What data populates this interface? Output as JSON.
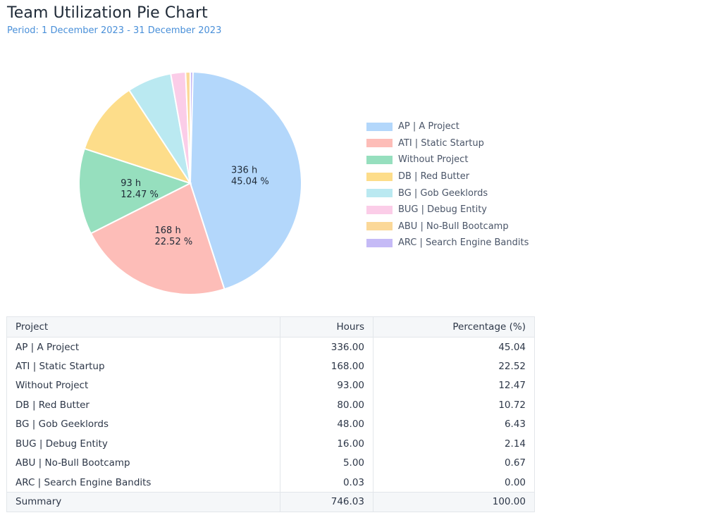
{
  "title": "Team Utilization Pie Chart",
  "subtitle": "Period: 1 December 2023 - 31 December 2023",
  "chart_data": {
    "type": "pie",
    "title": "Team Utilization Pie Chart",
    "categories": [
      "AP | A Project",
      "ATI | Static Startup",
      "Without Project",
      "DB | Red Butter",
      "BG | Gob Geeklords",
      "BUG | Debug Entity",
      "ABU | No-Bull Bootcamp",
      "ARC | Search Engine Bandits"
    ],
    "values": [
      336,
      168,
      93,
      80,
      48,
      16,
      5,
      0.03
    ],
    "colors": [
      "#b3d7fb",
      "#fdbdb8",
      "#96dfbe",
      "#fddd8a",
      "#bae9f1",
      "#fbcde8",
      "#fbd898",
      "#c5baf6"
    ],
    "slice_labels": [
      {
        "hours": "336 h",
        "pct": "45.04 %"
      },
      {
        "hours": "168 h",
        "pct": "22.52 %"
      },
      {
        "hours": "93 h",
        "pct": "12.47 %"
      }
    ],
    "legend_position": "right"
  },
  "table": {
    "headers": {
      "project": "Project",
      "hours": "Hours",
      "pct": "Percentage (%)"
    },
    "rows": [
      {
        "project": "AP | A Project",
        "hours": "336.00",
        "pct": "45.04"
      },
      {
        "project": "ATI | Static Startup",
        "hours": "168.00",
        "pct": "22.52"
      },
      {
        "project": "Without Project",
        "hours": "93.00",
        "pct": "12.47"
      },
      {
        "project": "DB | Red Butter",
        "hours": "80.00",
        "pct": "10.72"
      },
      {
        "project": "BG | Gob Geeklords",
        "hours": "48.00",
        "pct": "6.43"
      },
      {
        "project": "BUG | Debug Entity",
        "hours": "16.00",
        "pct": "2.14"
      },
      {
        "project": "ABU | No-Bull Bootcamp",
        "hours": "5.00",
        "pct": "0.67"
      },
      {
        "project": "ARC | Search Engine Bandits",
        "hours": "0.03",
        "pct": "0.00"
      }
    ],
    "summary": {
      "label": "Summary",
      "hours": "746.03",
      "pct": "100.00"
    }
  }
}
